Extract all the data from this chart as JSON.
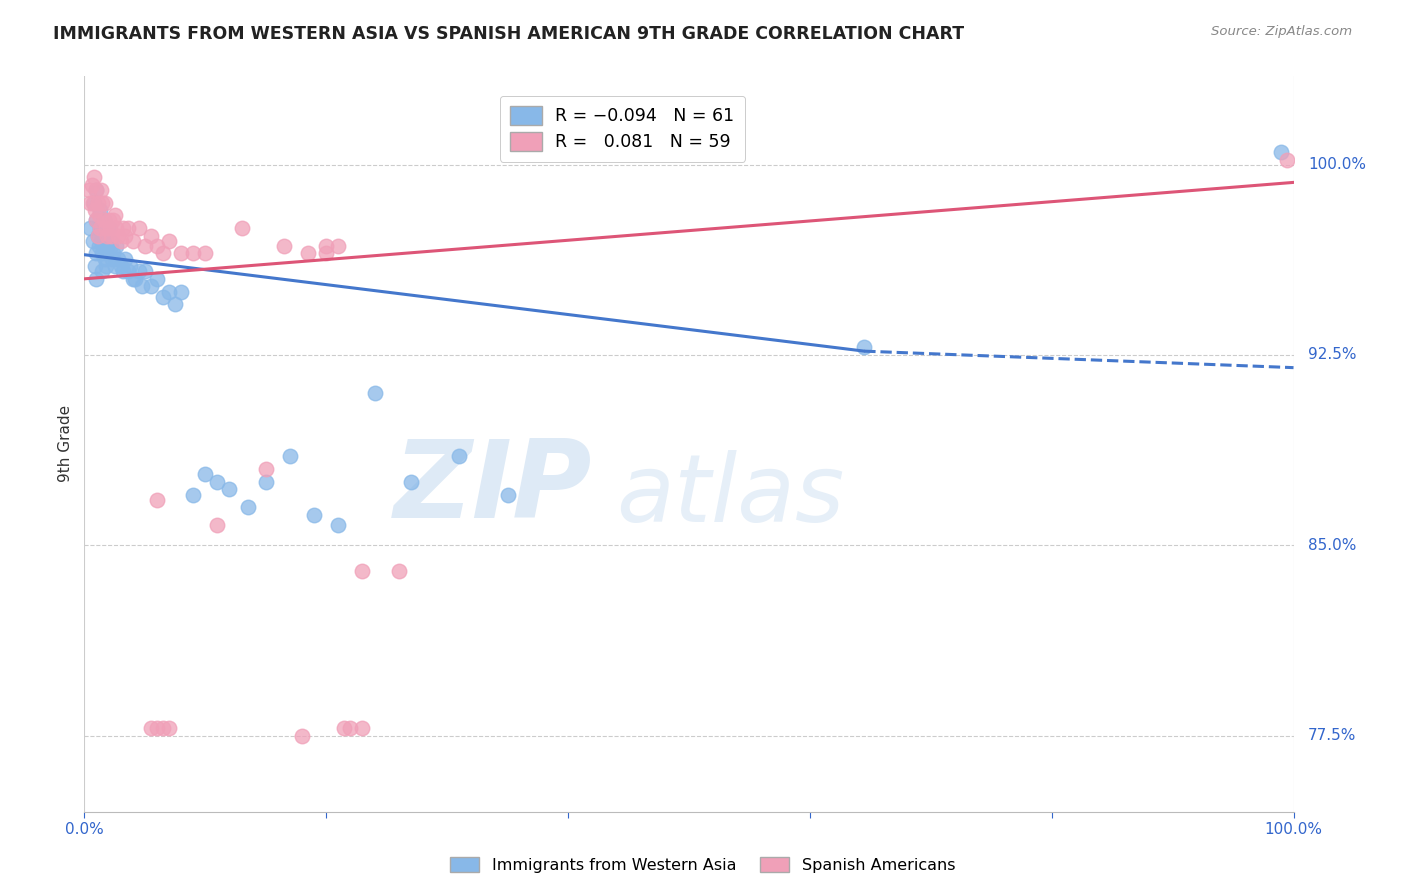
{
  "title": "IMMIGRANTS FROM WESTERN ASIA VS SPANISH AMERICAN 9TH GRADE CORRELATION CHART",
  "source": "Source: ZipAtlas.com",
  "ylabel": "9th Grade",
  "ytick_labels_right": [
    "77.5%",
    "85.0%",
    "92.5%",
    "100.0%"
  ],
  "ytick_positions_right": [
    0.775,
    0.85,
    0.925,
    1.0
  ],
  "xlim": [
    0.0,
    1.0
  ],
  "ylim": [
    0.745,
    1.035
  ],
  "legend_r1": "R = -0.094",
  "legend_n1": "N = 61",
  "legend_r2": "R =  0.081",
  "legend_n2": "N = 59",
  "blue_color": "#88B8E8",
  "pink_color": "#F0A0B8",
  "blue_line_color": "#4477CC",
  "pink_line_color": "#DD5577",
  "watermark_zip": "ZIP",
  "watermark_atlas": "atlas",
  "blue_line_x0": 0.0,
  "blue_line_y0": 0.9645,
  "blue_line_x_solid_end": 0.645,
  "blue_line_y_solid_end": 0.9265,
  "blue_line_x1": 1.0,
  "blue_line_y1": 0.92,
  "pink_line_x0": 0.0,
  "pink_line_y0": 0.955,
  "pink_line_x1": 1.0,
  "pink_line_y1": 0.993,
  "blue_scatter_x": [
    0.005,
    0.007,
    0.008,
    0.009,
    0.01,
    0.01,
    0.01,
    0.01,
    0.011,
    0.012,
    0.013,
    0.013,
    0.014,
    0.015,
    0.015,
    0.016,
    0.016,
    0.017,
    0.017,
    0.018,
    0.018,
    0.019,
    0.02,
    0.021,
    0.022,
    0.023,
    0.024,
    0.025,
    0.026,
    0.028,
    0.03,
    0.032,
    0.034,
    0.036,
    0.038,
    0.04,
    0.042,
    0.045,
    0.048,
    0.05,
    0.055,
    0.06,
    0.065,
    0.07,
    0.075,
    0.08,
    0.09,
    0.1,
    0.11,
    0.12,
    0.135,
    0.15,
    0.17,
    0.19,
    0.21,
    0.24,
    0.27,
    0.31,
    0.35,
    0.645,
    0.99
  ],
  "blue_scatter_y": [
    0.975,
    0.97,
    0.985,
    0.96,
    0.99,
    0.978,
    0.965,
    0.955,
    0.972,
    0.968,
    0.982,
    0.975,
    0.97,
    0.965,
    0.958,
    0.978,
    0.968,
    0.975,
    0.963,
    0.972,
    0.96,
    0.968,
    0.975,
    0.97,
    0.968,
    0.963,
    0.965,
    0.96,
    0.968,
    0.963,
    0.96,
    0.958,
    0.963,
    0.958,
    0.96,
    0.955,
    0.955,
    0.958,
    0.952,
    0.958,
    0.952,
    0.955,
    0.948,
    0.95,
    0.945,
    0.95,
    0.87,
    0.878,
    0.875,
    0.872,
    0.865,
    0.875,
    0.885,
    0.862,
    0.858,
    0.91,
    0.875,
    0.885,
    0.87,
    0.928,
    1.005
  ],
  "pink_scatter_x": [
    0.004,
    0.005,
    0.006,
    0.007,
    0.008,
    0.009,
    0.01,
    0.01,
    0.011,
    0.011,
    0.012,
    0.013,
    0.014,
    0.015,
    0.016,
    0.017,
    0.018,
    0.019,
    0.02,
    0.021,
    0.022,
    0.024,
    0.025,
    0.026,
    0.028,
    0.03,
    0.032,
    0.034,
    0.036,
    0.04,
    0.045,
    0.05,
    0.055,
    0.06,
    0.065,
    0.07,
    0.08,
    0.09,
    0.1,
    0.11,
    0.13,
    0.15,
    0.165,
    0.185,
    0.2,
    0.23,
    0.26,
    0.2,
    0.21,
    0.215,
    0.23,
    0.06,
    0.18,
    0.22,
    0.055,
    0.06,
    0.065,
    0.07,
    0.995
  ],
  "pink_scatter_y": [
    0.99,
    0.985,
    0.992,
    0.985,
    0.995,
    0.982,
    0.99,
    0.978,
    0.985,
    0.972,
    0.98,
    0.975,
    0.99,
    0.985,
    0.978,
    0.985,
    0.975,
    0.972,
    0.978,
    0.975,
    0.972,
    0.978,
    0.98,
    0.975,
    0.972,
    0.97,
    0.975,
    0.972,
    0.975,
    0.97,
    0.975,
    0.968,
    0.972,
    0.968,
    0.965,
    0.97,
    0.965,
    0.965,
    0.965,
    0.858,
    0.975,
    0.88,
    0.968,
    0.965,
    0.968,
    0.84,
    0.84,
    0.965,
    0.968,
    0.778,
    0.778,
    0.868,
    0.775,
    0.778,
    0.778,
    0.778,
    0.778,
    0.778,
    1.002
  ]
}
